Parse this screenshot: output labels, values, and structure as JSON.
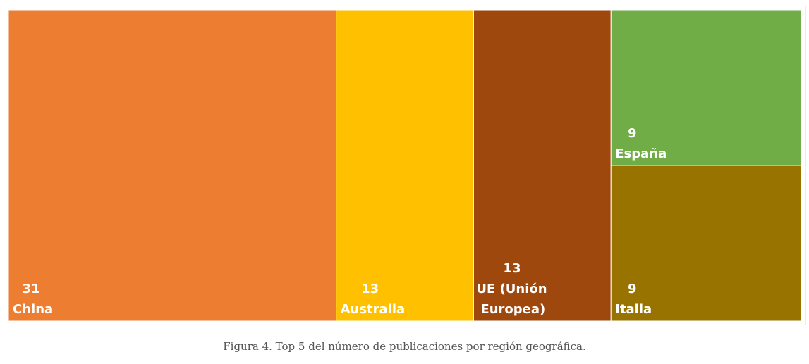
{
  "chart_data": {
    "type": "treemap",
    "title": "",
    "items": [
      {
        "label": "China",
        "value": 31,
        "color": "#ED7D31"
      },
      {
        "label": "Australia",
        "value": 13,
        "color": "#FFC000"
      },
      {
        "label": "UE (Unión Europea)",
        "value": 13,
        "color": "#9E480E"
      },
      {
        "label": "España",
        "value": 9,
        "color": "#70AD47"
      },
      {
        "label": "Italia",
        "value": 9,
        "color": "#997300"
      }
    ]
  },
  "caption": "Figura 4. Top 5 del número de publicaciones por región geográfica."
}
